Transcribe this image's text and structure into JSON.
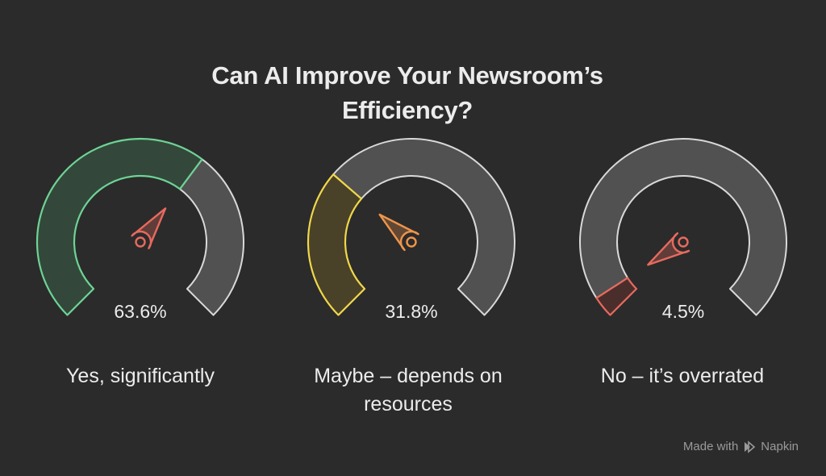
{
  "title_lines": [
    "Can AI Improve Your Newsroom’s",
    "Efficiency?"
  ],
  "footer": {
    "made_with": "Made with",
    "brand": "Napkin",
    "icon": "napkin-logo-icon"
  },
  "colors": {
    "background": "#2b2b2b",
    "track": "#515151",
    "track_stroke": "#d9d9d9"
  },
  "chart_data": {
    "type": "gauge",
    "title": "Can AI Improve Your Newsroom’s Efficiency?",
    "range": [
      0,
      100
    ],
    "unit": "%",
    "items": [
      {
        "value": 63.6,
        "value_label": "63.6%",
        "label_lines": [
          "Yes, significantly"
        ],
        "fill_color": "#33483a",
        "stroke_color": "#6ed396",
        "needle_color": "#e86a5e"
      },
      {
        "value": 31.8,
        "value_label": "31.8%",
        "label_lines": [
          "Maybe – depends on",
          "resources"
        ],
        "fill_color": "#4a4228",
        "stroke_color": "#f0d84a",
        "needle_color": "#f0954a"
      },
      {
        "value": 4.5,
        "value_label": "4.5%",
        "label_lines": [
          "No – it’s overrated"
        ],
        "fill_color": "#4a2e2c",
        "stroke_color": "#e86a5e",
        "needle_color": "#e86a5e"
      }
    ]
  }
}
